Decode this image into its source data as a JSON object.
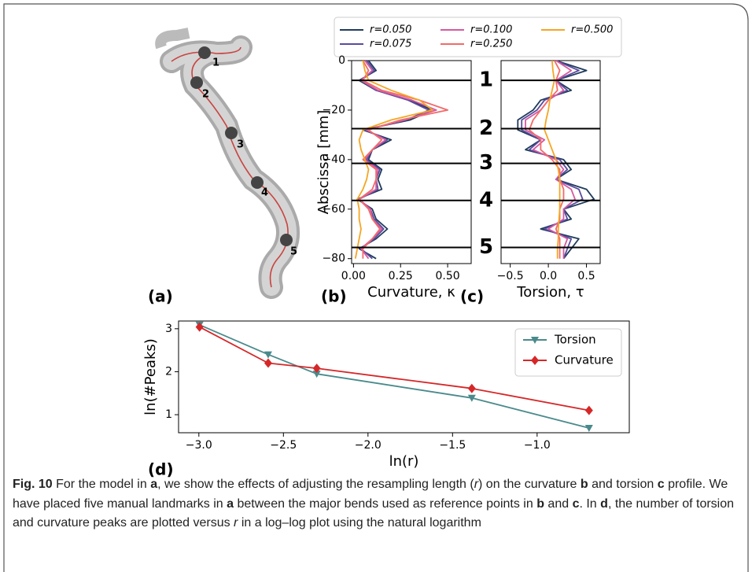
{
  "chart_data": [
    {
      "type": "line",
      "orientation": "vertical",
      "ylabel": "Abscissa [mm]",
      "xlabel": "Curvature, κ",
      "abscissa": [
        0,
        -4,
        -8,
        -12,
        -16,
        -20,
        -24,
        -28,
        -32,
        -36,
        -40,
        -44,
        -48,
        -52,
        -56,
        -60,
        -64,
        -68,
        -72,
        -76,
        -80
      ],
      "xlim": [
        -0.01,
        0.625
      ],
      "ylim": [
        -82,
        0
      ],
      "xticks": [
        {
          "value": 0,
          "label": "0.00"
        },
        {
          "value": 0.25,
          "label": "0.25"
        },
        {
          "value": 0.5,
          "label": "0.50"
        }
      ],
      "yticks": [
        {
          "value": 0,
          "label": "0"
        },
        {
          "value": -20,
          "label": "−20"
        },
        {
          "value": -40,
          "label": "−40"
        },
        {
          "value": -60,
          "label": "−60"
        },
        {
          "value": -80,
          "label": "−80"
        }
      ],
      "landmarks": [
        {
          "value": -8,
          "label": "1"
        },
        {
          "value": -27.5,
          "label": "2"
        },
        {
          "value": -41.5,
          "label": "3"
        },
        {
          "value": -56.5,
          "label": "4"
        },
        {
          "value": -75.5,
          "label": "5"
        }
      ],
      "series": [
        {
          "name": "r=0.050",
          "color": "#1f3b5c",
          "values": [
            0.08,
            0.12,
            0.03,
            0.12,
            0.3,
            0.42,
            0.3,
            0.05,
            0.2,
            0.1,
            0.08,
            0.15,
            0.13,
            0.15,
            0.02,
            0.1,
            0.12,
            0.18,
            0.12,
            0.03,
            0.12
          ]
        },
        {
          "name": "r=0.075",
          "color": "#5a4b9e",
          "values": [
            0.07,
            0.11,
            0.04,
            0.12,
            0.29,
            0.4,
            0.28,
            0.06,
            0.18,
            0.1,
            0.07,
            0.14,
            0.12,
            0.13,
            0.03,
            0.09,
            0.11,
            0.16,
            0.11,
            0.04,
            0.1
          ]
        },
        {
          "name": "r=0.100",
          "color": "#d45aa0",
          "values": [
            0.06,
            0.1,
            0.04,
            0.13,
            0.31,
            0.44,
            0.27,
            0.07,
            0.17,
            0.1,
            0.06,
            0.13,
            0.12,
            0.12,
            0.03,
            0.09,
            0.1,
            0.15,
            0.1,
            0.04,
            0.08
          ]
        },
        {
          "name": "r=0.250",
          "color": "#f26a6a",
          "values": [
            0.05,
            0.08,
            0.05,
            0.15,
            0.35,
            0.5,
            0.25,
            0.08,
            0.15,
            0.1,
            0.05,
            0.12,
            0.12,
            0.1,
            0.03,
            0.08,
            0.1,
            0.14,
            0.1,
            0.05,
            0.05
          ]
        },
        {
          "name": "r=0.500",
          "color": "#f5a623",
          "values": [
            0.05,
            0.06,
            0.08,
            0.2,
            0.35,
            0.42,
            0.2,
            0.05,
            0.03,
            0.04,
            0.06,
            0.08,
            0.07,
            0.05,
            0.02,
            0.03,
            0.03,
            0.04,
            0.03,
            0.02,
            0.01
          ]
        }
      ]
    },
    {
      "type": "line",
      "orientation": "vertical",
      "xlabel": "Torsion, τ",
      "abscissa": [
        0,
        -4,
        -8,
        -12,
        -16,
        -20,
        -24,
        -28,
        -32,
        -36,
        -40,
        -44,
        -48,
        -52,
        -56,
        -60,
        -64,
        -68,
        -72,
        -76,
        -80
      ],
      "xlim": [
        -0.62,
        0.68
      ],
      "ylim": [
        -82,
        0
      ],
      "xticks": [
        {
          "value": -0.5,
          "label": "−0.5"
        },
        {
          "value": 0,
          "label": "0.0"
        },
        {
          "value": 0.5,
          "label": "0.5"
        }
      ],
      "landmarks": [
        -8,
        -27.5,
        -41.5,
        -56.5,
        -75.5
      ],
      "series": [
        {
          "color": "#1f3b5c",
          "values": [
            0.1,
            0.5,
            0.1,
            0.3,
            -0.1,
            -0.2,
            -0.4,
            -0.4,
            -0.1,
            -0.3,
            0.2,
            0.3,
            0.1,
            0.5,
            0.6,
            0.2,
            0.3,
            -0.1,
            0.4,
            0.3,
            0.2
          ]
        },
        {
          "color": "#5a4b9e",
          "values": [
            0.1,
            0.4,
            0.1,
            0.25,
            -0.05,
            -0.15,
            -0.35,
            -0.35,
            -0.1,
            -0.25,
            0.15,
            0.25,
            0.1,
            0.4,
            0.45,
            0.2,
            0.25,
            -0.05,
            0.3,
            0.25,
            0.2
          ]
        },
        {
          "color": "#d45aa0",
          "values": [
            0.1,
            0.3,
            0.1,
            0.2,
            0.0,
            -0.1,
            -0.3,
            -0.3,
            -0.05,
            -0.2,
            0.1,
            0.2,
            0.1,
            0.3,
            0.35,
            0.2,
            0.2,
            0.0,
            0.25,
            0.2,
            0.2
          ]
        },
        {
          "color": "#f26a6a",
          "values": [
            0.08,
            0.15,
            0.1,
            0.12,
            0.0,
            -0.1,
            -0.2,
            -0.25,
            -0.1,
            -0.1,
            0.05,
            0.15,
            0.15,
            0.2,
            0.2,
            0.15,
            0.15,
            0.1,
            0.15,
            0.15,
            0.15
          ]
        },
        {
          "color": "#f5a623",
          "values": [
            0.05,
            0.06,
            0.08,
            0.05,
            0.02,
            0.0,
            -0.03,
            -0.05,
            0.0,
            0.05,
            0.1,
            0.13,
            0.15,
            0.15,
            0.15,
            0.15,
            0.14,
            0.13,
            0.13,
            0.12,
            0.12
          ]
        }
      ]
    },
    {
      "type": "line",
      "orientation": "horizontal",
      "xlabel": "ln(r)",
      "ylabel": "ln(#Peaks)",
      "x": [
        -2.996,
        -2.59,
        -2.303,
        -1.386,
        -0.693
      ],
      "xlim": [
        -3.12,
        -0.455
      ],
      "ylim": [
        0.58,
        3.18
      ],
      "xticks": [
        {
          "value": -3,
          "label": "−3.0"
        },
        {
          "value": -2.5,
          "label": "−2.5"
        },
        {
          "value": -2,
          "label": "−2.0"
        },
        {
          "value": -1.5,
          "label": "−1.5"
        },
        {
          "value": -1,
          "label": "−1.0"
        }
      ],
      "yticks": [
        1,
        2,
        3
      ],
      "series": [
        {
          "name": "Torsion",
          "color": "#4a8a8c",
          "marker": "triangle-down",
          "values": [
            3.09,
            2.4,
            1.95,
            1.39,
            0.69
          ]
        },
        {
          "name": "Curvature",
          "color": "#d62728",
          "marker": "diamond",
          "values": [
            3.04,
            2.2,
            2.08,
            1.61,
            1.1
          ]
        }
      ]
    }
  ],
  "figure_a": {
    "landmarks": [
      "1",
      "2",
      "3",
      "4",
      "5"
    ]
  },
  "panel_labels": [
    "(a)",
    "(b)",
    "(c)",
    "(d)"
  ],
  "caption": {
    "parts": [
      "Fig. 10",
      "  For the model in ",
      "a",
      ", we show the effects of adjusting the resampling length (",
      "r",
      ") on the curvature ",
      "b",
      " and torsion ",
      "c",
      " profile. We have placed five manual landmarks in ",
      "a",
      " between the major bends used as reference points in ",
      "b",
      " and ",
      "c",
      ". In ",
      "d",
      ", the number of torsion and curvature peaks are plotted versus ",
      "r",
      " in a log–log plot using the natural logarithm"
    ]
  }
}
